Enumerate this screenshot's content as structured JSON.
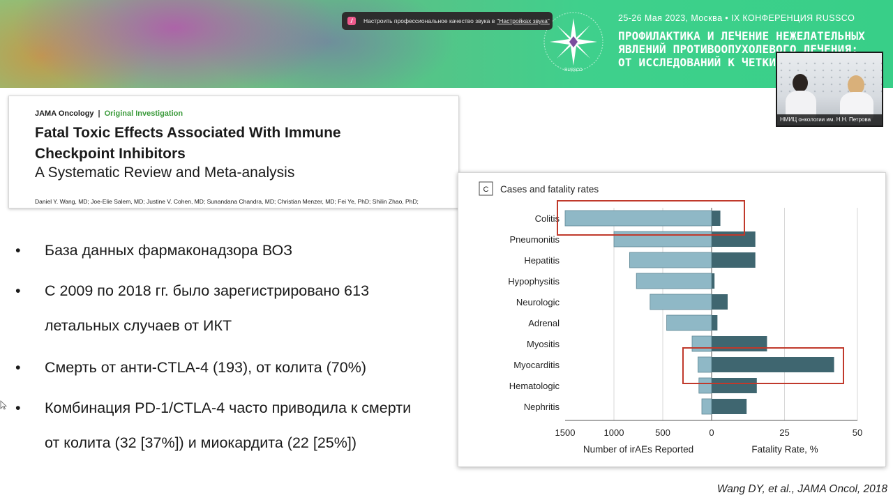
{
  "banner": {
    "date_line": "25-26 Мая 2023, Москва • IX КОНФЕРЕНЦИЯ RUSSCO",
    "title_lines": [
      "ПРОФИЛАКТИКА И ЛЕЧЕНИЕ НЕЖЕЛАТЕЛЬНЫХ",
      "ЯВЛЕНИЙ ПРОТИВООПУХОЛЕВОГО ЛЕЧЕНИЯ:",
      "ОТ ИССЛЕДОВАНИЙ К ЧЕТКИМ Р"
    ],
    "logo_icon": "snowflake-star-logo",
    "logo_text": "RUSSCO"
  },
  "notification": {
    "icon": "app-icon",
    "text": "Настроить профессиональное качество звука в",
    "link": "\"Настройках звука\""
  },
  "video": {
    "caption": "НМИЦ онкологии им. Н.Н. Петрова"
  },
  "article": {
    "journal": "JAMA Oncology",
    "separator": "|",
    "type": "Original Investigation",
    "title_lines": [
      "Fatal Toxic Effects Associated With Immune",
      "Checkpoint Inhibitors"
    ],
    "subtitle": "A Systematic Review and Meta-analysis",
    "authors": "Daniel Y. Wang, MD; Joe-Elie Salem, MD; Justine V. Cohen, MD; Sunandana Chandra, MD; Christian Menzer, MD; Fei Ye, PhD; Shilin Zhao, PhD;"
  },
  "bullets": [
    {
      "symbol": "•",
      "lines": [
        "База данных фармаконадзора ВОЗ"
      ]
    },
    {
      "symbol": "•",
      "lines": [
        "С 2009 по 2018 гг. было зарегистрировано 613",
        "летальных случаев от ИКТ"
      ]
    },
    {
      "symbol": "•",
      "lines": [
        "Смерть от анти-CTLA-4 (193), от колита (70%)"
      ]
    },
    {
      "symbol": "•",
      "lines": [
        "Комбинация PD-1/CTLA-4 часто приводила к смерти",
        "от колита (32 [37%]) и миокардита (22 [25%])"
      ]
    }
  ],
  "credit": "Wang DY, et al., JAMA Oncol, 2018",
  "colors": {
    "irae_bar": "#8fb8c6",
    "fatality_bar": "#3f6670",
    "highlight_box": "#c0392b",
    "article_type": "#3a9a3a"
  },
  "chart_data": {
    "type": "bar",
    "panel_letter": "C",
    "title": "Cases and fatality rates",
    "categories": [
      "Colitis",
      "Pneumonitis",
      "Hepatitis",
      "Hypophysitis",
      "Neurologic",
      "Adrenal",
      "Myositis",
      "Myocarditis",
      "Hematologic",
      "Nephritis"
    ],
    "series": [
      {
        "name": "Number of irAEs Reported",
        "values": [
          1500,
          1000,
          840,
          770,
          630,
          460,
          200,
          140,
          130,
          100
        ],
        "direction": "left"
      },
      {
        "name": "Fatality Rate, %",
        "values": [
          3,
          15,
          15,
          1,
          5.5,
          2,
          19,
          42,
          15.5,
          12
        ],
        "direction": "right"
      }
    ],
    "left_axis": {
      "label": "Number of irAEs Reported",
      "range": [
        1500,
        0
      ],
      "ticks": [
        "1500",
        "1000",
        "500",
        "0"
      ]
    },
    "right_axis": {
      "label": "Fatality Rate, %",
      "range": [
        0,
        50
      ],
      "ticks": [
        "25",
        "50"
      ]
    },
    "highlighted": [
      "Colitis",
      "Myocarditis"
    ],
    "grid": true
  }
}
